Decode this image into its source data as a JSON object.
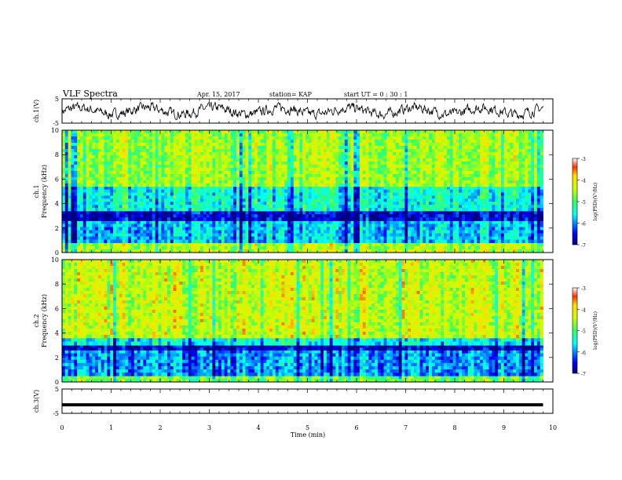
{
  "header": {
    "title": "VLF Spectra",
    "date": "Apr. 15, 2017",
    "station": "station= KAP",
    "start_ut": "start  UT =  0 : 30 : 1"
  },
  "x_axis": {
    "label": "Time  (min)",
    "ticks": [
      0,
      1,
      2,
      3,
      4,
      5,
      6,
      7,
      8,
      9,
      10
    ],
    "range": [
      0,
      10
    ]
  },
  "colorbar": {
    "label": "log(PSD)(V²/Hz)",
    "ticks": [
      -3,
      -4,
      -5,
      -6,
      -7
    ],
    "range": [
      -7,
      -3
    ]
  },
  "chart_data": [
    {
      "type": "line",
      "name": "ch1-waveform",
      "ylabel": "ch.1(V)",
      "ylim": [
        -5,
        5
      ],
      "yticks": [
        5,
        -5
      ],
      "x_range": [
        0,
        9.8
      ],
      "values_desc": "noisy waveform around 0 V, amplitude about ±3 V"
    },
    {
      "type": "heatmap",
      "name": "ch1-spectrogram",
      "ylabel": "ch.1\nFrequency  (kHz)",
      "ylim": [
        0,
        10
      ],
      "yticks": [
        0,
        2,
        4,
        6,
        8,
        10
      ],
      "x_range": [
        0,
        9.8
      ],
      "color_range": [
        -7,
        -3
      ],
      "bands": [
        {
          "f_low": 0.0,
          "f_high": 0.8,
          "level": -4.5
        },
        {
          "f_low": 0.8,
          "f_high": 2.6,
          "level": -5.8
        },
        {
          "f_low": 2.6,
          "f_high": 3.4,
          "level": -6.7
        },
        {
          "f_low": 3.4,
          "f_high": 5.4,
          "level": -5.5
        },
        {
          "f_low": 5.4,
          "f_high": 10.0,
          "level": -4.6
        }
      ]
    },
    {
      "type": "heatmap",
      "name": "ch2-spectrogram",
      "ylabel": "ch.2\nFrequency  (kHz)",
      "ylim": [
        0,
        10
      ],
      "yticks": [
        0,
        2,
        4,
        6,
        8,
        10
      ],
      "x_range": [
        0,
        9.8
      ],
      "color_range": [
        -7,
        -3
      ],
      "bands": [
        {
          "f_low": 0.0,
          "f_high": 0.5,
          "level": -4.8
        },
        {
          "f_low": 0.5,
          "f_high": 2.6,
          "level": -6.0
        },
        {
          "f_low": 2.6,
          "f_high": 3.0,
          "level": -6.8
        },
        {
          "f_low": 3.0,
          "f_high": 3.6,
          "level": -5.6
        },
        {
          "f_low": 3.6,
          "f_high": 10.0,
          "level": -4.4
        }
      ]
    },
    {
      "type": "line",
      "name": "ch3-waveform",
      "ylabel": "ch.3(V)",
      "ylim": [
        -5,
        5
      ],
      "yticks": [
        5,
        -5
      ],
      "x_range": [
        0,
        9.8
      ],
      "values": [
        -1.5,
        -1.5
      ]
    }
  ]
}
